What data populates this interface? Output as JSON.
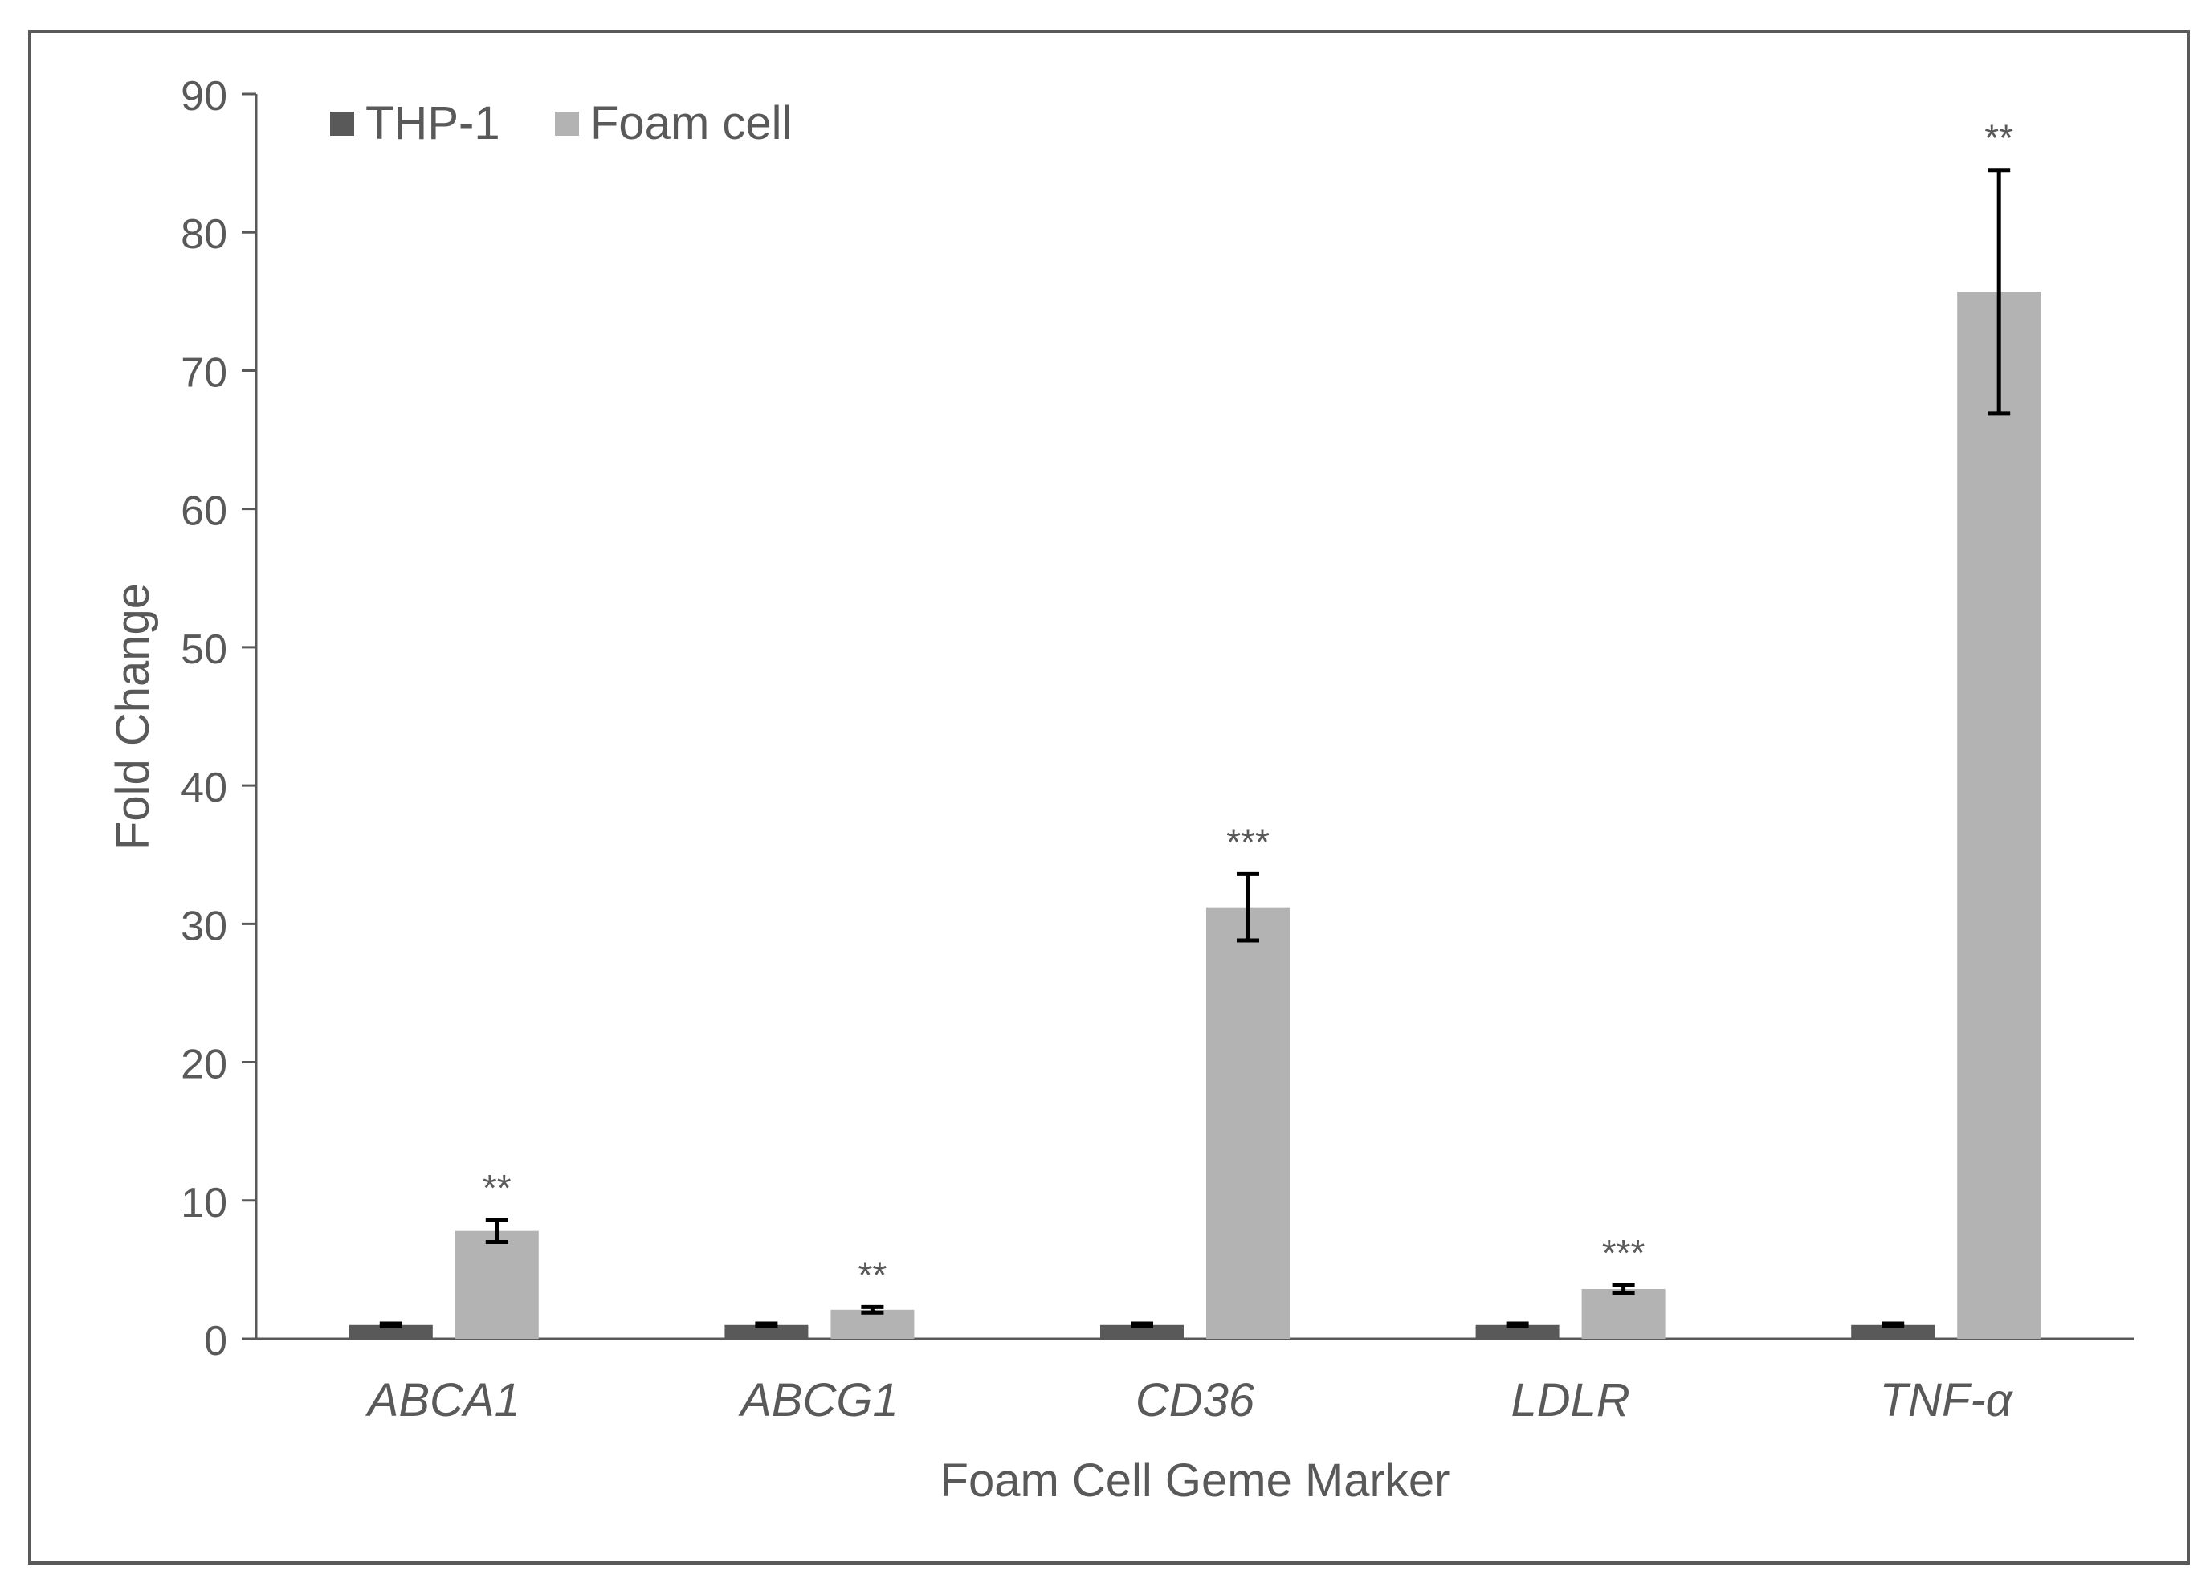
{
  "chart_data": {
    "type": "bar",
    "title": "",
    "xlabel": "Foam Cell Geme Marker",
    "ylabel": "Fold Change",
    "ylim": [
      0,
      90
    ],
    "yticks": [
      0,
      10,
      20,
      30,
      40,
      50,
      60,
      70,
      80,
      90
    ],
    "grid": false,
    "legend_position": "top-left",
    "categories": [
      "ABCA1",
      "ABCG1",
      "CD36",
      "LDLR",
      "TNF-α"
    ],
    "series": [
      {
        "name": "THP-1",
        "color": "#595959",
        "values": [
          1,
          1,
          1,
          1,
          1
        ],
        "errors": [
          0.1,
          0.1,
          0.1,
          0.1,
          0.1
        ],
        "significance": [
          "",
          "",
          "",
          "",
          ""
        ]
      },
      {
        "name": "Foam cell",
        "color": "#b3b3b3",
        "values": [
          7.8,
          2.1,
          31.2,
          3.6,
          75.7
        ],
        "errors": [
          0.8,
          0.2,
          2.4,
          0.3,
          8.8
        ],
        "significance": [
          "**",
          "**",
          "***",
          "***",
          "**"
        ]
      }
    ]
  }
}
